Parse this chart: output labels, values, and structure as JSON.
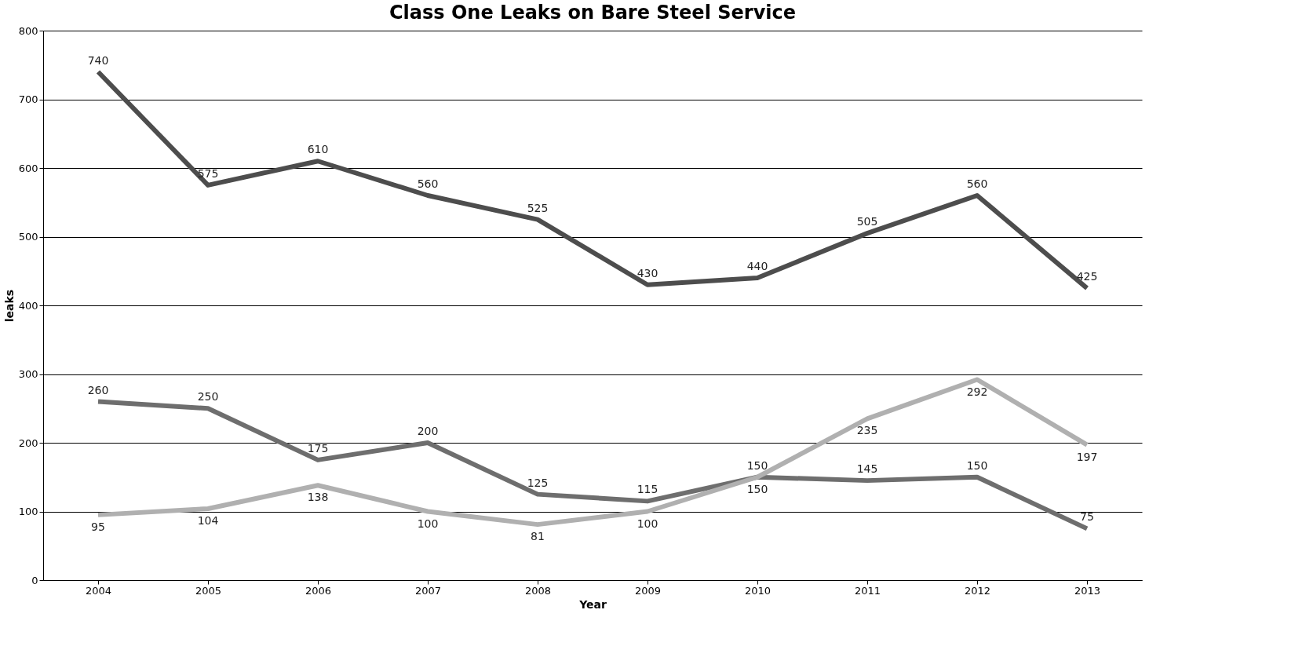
{
  "chart_data": {
    "type": "line",
    "title": "Class One Leaks on Bare Steel Service",
    "xlabel": "Year",
    "ylabel": "leaks",
    "categories": [
      "2004",
      "2005",
      "2006",
      "2007",
      "2008",
      "2009",
      "2010",
      "2011",
      "2012",
      "2013"
    ],
    "series": [
      {
        "color": "#4d4d4d",
        "values": [
          740,
          575,
          610,
          560,
          525,
          430,
          440,
          505,
          560,
          425
        ]
      },
      {
        "color": "#6e6e6e",
        "values": [
          260,
          250,
          175,
          200,
          125,
          115,
          150,
          145,
          150,
          75
        ]
      },
      {
        "color": "#b0b0b0",
        "values": [
          95,
          104,
          138,
          100,
          81,
          100,
          150,
          235,
          292,
          197
        ]
      }
    ],
    "ylim": [
      0,
      800
    ],
    "yticks": [
      0,
      100,
      200,
      300,
      400,
      500,
      600,
      700,
      800
    ],
    "grid": "y",
    "data_labels": true,
    "marker": "none",
    "line_style": "solid"
  }
}
